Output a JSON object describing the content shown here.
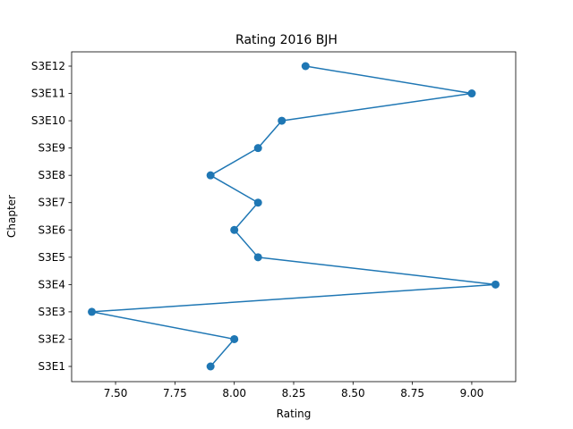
{
  "chart_data": {
    "type": "line",
    "title": "Rating 2016 BJH",
    "xlabel": "Rating",
    "ylabel": "Chapter",
    "categories": [
      "S3E1",
      "S3E2",
      "S3E3",
      "S3E4",
      "S3E5",
      "S3E6",
      "S3E7",
      "S3E8",
      "S3E9",
      "S3E10",
      "S3E11",
      "S3E12"
    ],
    "series": [
      {
        "values": [
          7.9,
          8.0,
          7.4,
          9.1,
          8.1,
          8.0,
          8.1,
          7.9,
          8.1,
          8.2,
          9.0,
          8.3
        ]
      }
    ],
    "xlim": [
      7.315,
      9.185
    ],
    "xticks": [
      7.5,
      7.75,
      8.0,
      8.25,
      8.5,
      8.75,
      9.0
    ],
    "xtick_labels": [
      "7.50",
      "7.75",
      "8.00",
      "8.25",
      "8.50",
      "8.75",
      "9.00"
    ],
    "grid": false,
    "color": "#1f77b4"
  }
}
